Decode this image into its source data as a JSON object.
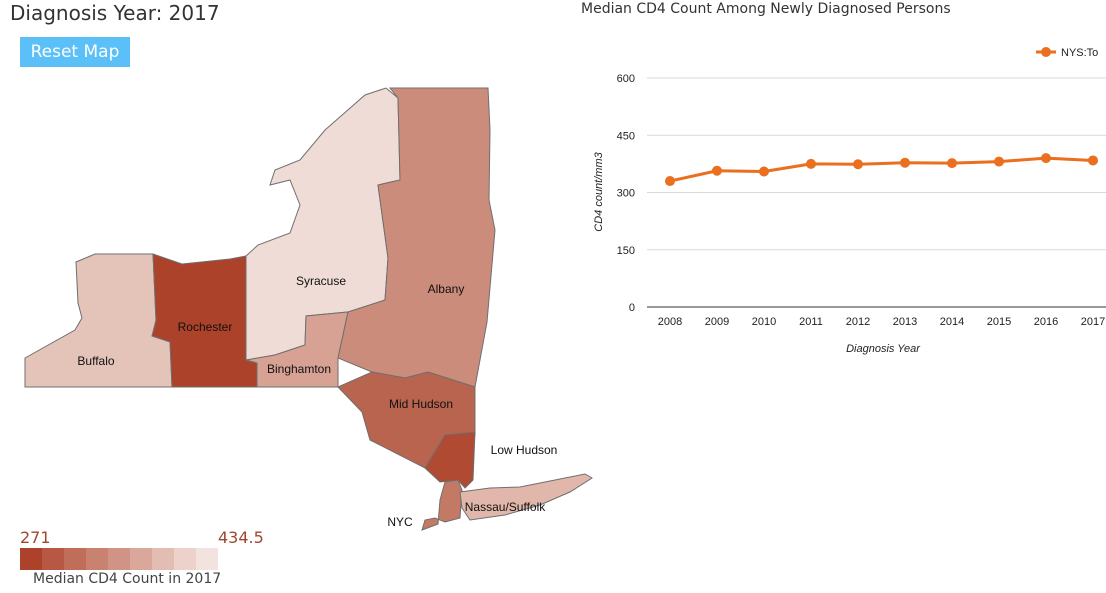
{
  "page_title": "Diagnosis Year: 2017",
  "reset_button_label": "Reset Map",
  "map": {
    "regions": [
      {
        "key": "buffalo",
        "label": "Buffalo",
        "fill": "#e4c3b9"
      },
      {
        "key": "rochester",
        "label": "Rochester",
        "fill": "#ab4229"
      },
      {
        "key": "syracuse",
        "label": "Syracuse",
        "fill": "#efdcd6"
      },
      {
        "key": "binghamton",
        "label": "Binghamton",
        "fill": "#d7a294"
      },
      {
        "key": "albany",
        "label": "Albany",
        "fill": "#cc8c7b"
      },
      {
        "key": "mid_hudson",
        "label": "Mid Hudson",
        "fill": "#b8644f"
      },
      {
        "key": "low_hudson",
        "label": "Low Hudson",
        "fill": "#b04a33"
      },
      {
        "key": "nyc",
        "label": "NYC",
        "fill": "#c47965"
      },
      {
        "key": "nassau_suffolk",
        "label": "Nassau/Suffolk",
        "fill": "#e0b7aa"
      }
    ]
  },
  "legend": {
    "min_label": "271",
    "max_label": "434.5",
    "caption": "Median CD4 Count in 2017",
    "colors": [
      "#ab4229",
      "#b65843",
      "#c06d5a",
      "#c98170",
      "#d19386",
      "#daa79b",
      "#e3bcb2",
      "#ecd2cb",
      "#f2e3de"
    ]
  },
  "chart_data": {
    "type": "line",
    "title": "Median CD4 Count Among Newly Diagnosed Persons",
    "xlabel": "Diagnosis Year",
    "ylabel": "CD4 count/mm3",
    "x": [
      "2008",
      "2009",
      "2010",
      "2011",
      "2012",
      "2013",
      "2014",
      "2015",
      "2016",
      "2017"
    ],
    "ylim": [
      0,
      600
    ],
    "yticks": [
      "0",
      "150",
      "300",
      "450",
      "600"
    ],
    "grid": true,
    "legend_position": "top-right",
    "series": [
      {
        "name": "NYS:To",
        "color": "#ea6f1f",
        "values": [
          330,
          357,
          355,
          375,
          374,
          378,
          377,
          381,
          390,
          384
        ]
      }
    ]
  }
}
